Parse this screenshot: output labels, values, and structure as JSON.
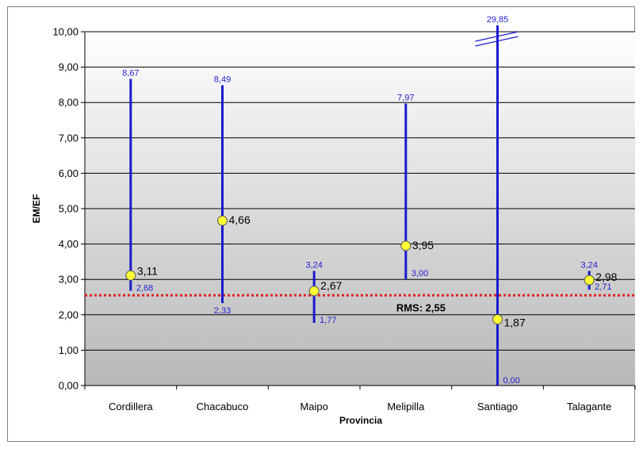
{
  "chart_data": {
    "type": "scatter",
    "xlabel": "Provincia",
    "ylabel": "EM/EF",
    "ylim": [
      0,
      10
    ],
    "yticks": [
      "0,00",
      "1,00",
      "2,00",
      "3,00",
      "4,00",
      "5,00",
      "6,00",
      "7,00",
      "8,00",
      "9,00",
      "10,00"
    ],
    "grid": true,
    "categories": [
      "Cordillera",
      "Chacabuco",
      "Maipo",
      "Melipilla",
      "Santiago",
      "Talagante"
    ],
    "series": [
      {
        "values": [
          3.11,
          4.66,
          2.67,
          3.95,
          1.87,
          2.98
        ],
        "labels": [
          "3,11",
          "4,66",
          "2,67",
          "3,95",
          "1,87",
          "2,98"
        ],
        "min": [
          2.68,
          2.33,
          1.77,
          3.0,
          0.0,
          2.71
        ],
        "max": [
          8.67,
          8.49,
          3.24,
          7.97,
          29.85,
          3.24
        ],
        "min_labels": [
          "2,68",
          "2,33",
          "1,77",
          "3,00",
          "0,00",
          "2,71"
        ],
        "max_labels": [
          "8,67",
          "8,49",
          "3,24",
          "7,97",
          "29,85",
          "3,24"
        ]
      }
    ],
    "reference_line": {
      "value": 2.55,
      "label": "RMS: 2,55",
      "color": "#e02020"
    },
    "colors": {
      "range": "#1a1acc",
      "marker_fill": "#ffff33",
      "marker_stroke": "#555555",
      "range_label": "#1f1fd0"
    }
  }
}
